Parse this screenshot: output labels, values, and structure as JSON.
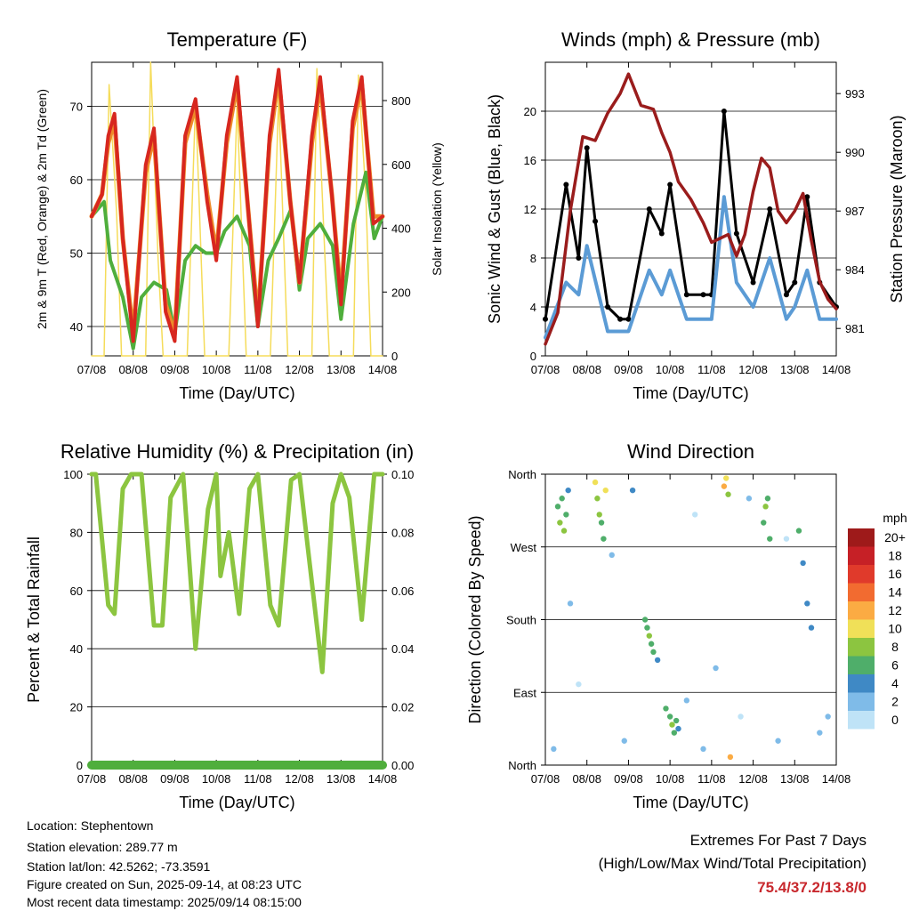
{
  "footer": {
    "location": "Location: Stephentown",
    "elevation": "Station elevation: 289.77 m",
    "latlon": "Station lat/lon: 42.5262; -73.3591",
    "created": "Figure created on Sun, 2025-09-14, at 08:23 UTC",
    "recent": "Most recent data timestamp: 2025/09/14 08:15:00"
  },
  "extremes": {
    "title": "Extremes For Past 7 Days",
    "subtitle": "(High/Low/Max Wind/Total Precipitation)",
    "values": "75.4/37.2/13.8/0",
    "color": "#c8282d"
  },
  "chart_data": [
    {
      "type": "line",
      "title": "Temperature (F)",
      "xlabel": "Time (Day/UTC)",
      "ylabel": "2m & 9m T (Red, Orange) & 2m Td (Green)",
      "y2label": "Solar Insolation (Yellow)",
      "x_ticks": [
        "07/08",
        "08/08",
        "09/08",
        "10/08",
        "11/08",
        "12/08",
        "13/08",
        "14/08"
      ],
      "xlim": [
        0,
        7
      ],
      "ylim": [
        36,
        76
      ],
      "y_ticks": [
        "40",
        "50",
        "60",
        "70"
      ],
      "y2lim": [
        0,
        920
      ],
      "y2_ticks": [
        "0",
        "200",
        "400",
        "600",
        "800"
      ],
      "grid": "horizontal",
      "colors": {
        "t2m": "#d7271f",
        "t9m": "#ee8a2a",
        "td": "#4fae3c",
        "solar": "#f5dc5a"
      },
      "series": [
        {
          "key": "t2m",
          "x": [
            0,
            0.25,
            0.4,
            0.55,
            0.75,
            1.0,
            1.3,
            1.5,
            1.78,
            2.0,
            2.25,
            2.5,
            2.78,
            3.0,
            3.25,
            3.5,
            3.78,
            4.0,
            4.28,
            4.5,
            4.78,
            5.0,
            5.3,
            5.5,
            5.78,
            6.0,
            6.28,
            6.5,
            6.78,
            7.0
          ],
          "y": [
            55,
            58,
            66,
            69,
            52,
            38,
            62,
            67,
            42,
            38,
            66,
            71,
            57,
            49,
            66,
            74,
            55,
            40,
            66,
            75,
            57,
            46,
            66,
            74,
            58,
            43,
            68,
            74,
            54,
            55
          ]
        },
        {
          "key": "t9m",
          "x": [
            0,
            0.25,
            0.4,
            0.55,
            0.75,
            1.0,
            1.3,
            1.5,
            1.78,
            2.0,
            2.25,
            2.5,
            2.78,
            3.0,
            3.25,
            3.5,
            3.78,
            4.0,
            4.28,
            4.5,
            4.78,
            5.0,
            5.3,
            5.5,
            5.78,
            6.0,
            6.28,
            6.5,
            6.78,
            7.0
          ],
          "y": [
            55,
            58,
            65,
            68,
            52,
            39,
            61,
            66,
            43,
            39,
            65,
            70,
            58,
            50,
            65,
            73,
            55,
            41,
            65,
            74,
            57,
            46,
            65,
            73,
            58,
            44,
            67,
            73,
            55,
            55
          ]
        },
        {
          "key": "td",
          "x": [
            0,
            0.3,
            0.45,
            0.75,
            1.0,
            1.2,
            1.5,
            1.8,
            2.0,
            2.25,
            2.5,
            2.75,
            3.0,
            3.2,
            3.5,
            3.8,
            4.0,
            4.25,
            4.5,
            4.8,
            5.0,
            5.2,
            5.5,
            5.8,
            6.0,
            6.3,
            6.6,
            6.8,
            7.0
          ],
          "y": [
            55,
            57,
            49,
            44,
            37,
            44,
            46,
            45,
            39,
            49,
            51,
            50,
            50,
            53,
            55,
            51,
            40,
            49,
            52,
            56,
            45,
            52,
            54,
            51,
            41,
            54,
            61,
            52,
            55
          ]
        },
        {
          "key": "solar",
          "x": [
            0,
            0.3,
            0.42,
            0.6,
            0.72,
            1.0,
            1.3,
            1.42,
            1.6,
            1.72,
            2.0,
            2.3,
            2.5,
            2.72,
            3.0,
            3.3,
            3.5,
            3.72,
            4.0,
            4.3,
            4.5,
            4.72,
            5.0,
            5.3,
            5.42,
            5.6,
            5.72,
            6.0,
            6.3,
            6.42,
            6.6,
            6.72,
            7.0
          ],
          "y": [
            0,
            0,
            850,
            450,
            0,
            0,
            0,
            920,
            300,
            0,
            0,
            0,
            800,
            0,
            0,
            0,
            790,
            0,
            0,
            0,
            810,
            0,
            0,
            0,
            900,
            350,
            0,
            0,
            0,
            880,
            500,
            0,
            0
          ]
        }
      ]
    },
    {
      "type": "line",
      "title": "Winds (mph) & Pressure (mb)",
      "xlabel": "Time (Day/UTC)",
      "ylabel": "Sonic Wind & Gust (Blue, Black)",
      "y2label": "Station Pressure (Maroon)",
      "x_ticks": [
        "07/08",
        "08/08",
        "09/08",
        "10/08",
        "11/08",
        "12/08",
        "13/08",
        "14/08"
      ],
      "xlim": [
        0,
        7
      ],
      "ylim": [
        0,
        24
      ],
      "y_ticks": [
        "0",
        "4",
        "8",
        "12",
        "16",
        "20"
      ],
      "y2lim": [
        979.6,
        994.6
      ],
      "y2_ticks": [
        "981",
        "984",
        "987",
        "990",
        "993"
      ],
      "grid": "horizontal",
      "colors": {
        "wind": "#5b9bd5",
        "gust": "#000000",
        "pressure": "#9a1c1c"
      },
      "series": [
        {
          "key": "wind",
          "x": [
            0,
            0.5,
            0.8,
            1.0,
            1.5,
            1.8,
            2.0,
            2.5,
            2.8,
            3.0,
            3.4,
            3.8,
            4.0,
            4.3,
            4.6,
            5.0,
            5.4,
            5.8,
            6.0,
            6.3,
            6.6,
            7.0
          ],
          "y": [
            1.5,
            6,
            5,
            9,
            2,
            2,
            2,
            7,
            5,
            7,
            3,
            3,
            3,
            13,
            6,
            4,
            8,
            3,
            4,
            7,
            3,
            3
          ]
        },
        {
          "key": "gust",
          "x": [
            0,
            0.5,
            0.8,
            1.0,
            1.2,
            1.5,
            1.8,
            2.0,
            2.5,
            2.8,
            3.0,
            3.4,
            3.8,
            4.0,
            4.3,
            4.6,
            5.0,
            5.4,
            5.8,
            6.0,
            6.3,
            6.6,
            7.0
          ],
          "y": [
            3,
            14,
            8,
            17,
            11,
            4,
            3,
            3,
            12,
            10,
            14,
            5,
            5,
            5,
            20,
            10,
            6,
            12,
            5,
            6,
            13,
            6,
            4
          ]
        },
        {
          "key": "pressure",
          "x": [
            0,
            0.3,
            0.6,
            0.9,
            1.2,
            1.5,
            1.8,
            2.0,
            2.3,
            2.6,
            2.8,
            3.0,
            3.2,
            3.5,
            3.8,
            4.0,
            4.2,
            4.4,
            4.6,
            4.8,
            5.0,
            5.2,
            5.4,
            5.6,
            5.8,
            6.0,
            6.2,
            6.4,
            6.6,
            6.8,
            7.0
          ],
          "y": [
            980.2,
            981.8,
            987,
            990.8,
            990.6,
            992,
            993,
            994,
            992.4,
            992.2,
            991,
            990,
            988.5,
            987.6,
            986.4,
            985.4,
            985.6,
            985.8,
            984.7,
            985.8,
            988,
            989.7,
            989.2,
            987,
            986.4,
            987,
            987.9,
            985.5,
            983.4,
            982.5,
            982
          ]
        }
      ]
    },
    {
      "type": "line",
      "title": "Relative Humidity (%) & Precipitation (in)",
      "xlabel": "Time (Day/UTC)",
      "ylabel": "Percent & Total Rainfall",
      "x_ticks": [
        "07/08",
        "08/08",
        "09/08",
        "10/08",
        "11/08",
        "12/08",
        "13/08",
        "14/08"
      ],
      "xlim": [
        0,
        7
      ],
      "ylim": [
        0,
        100
      ],
      "y_ticks": [
        "0",
        "20",
        "40",
        "60",
        "80",
        "100"
      ],
      "y2lim": [
        0,
        0.1
      ],
      "y2_ticks": [
        "0.00",
        "0.02",
        "0.04",
        "0.06",
        "0.08",
        "0.10"
      ],
      "grid": "horizontal",
      "colors": {
        "rh": "#8cc540",
        "precip": "#4fae3c"
      },
      "series": [
        {
          "key": "rh",
          "x": [
            0,
            0.1,
            0.22,
            0.4,
            0.55,
            0.75,
            0.95,
            1.2,
            1.5,
            1.7,
            1.9,
            2.2,
            2.5,
            2.8,
            3.0,
            3.1,
            3.3,
            3.55,
            3.8,
            4.0,
            4.3,
            4.5,
            4.8,
            5.0,
            5.2,
            5.55,
            5.8,
            6.0,
            6.2,
            6.5,
            6.8,
            7.0
          ],
          "y": [
            100,
            100,
            82,
            55,
            52,
            95,
            100,
            100,
            48,
            48,
            92,
            100,
            40,
            88,
            100,
            65,
            80,
            52,
            95,
            100,
            55,
            48,
            98,
            100,
            75,
            32,
            90,
            100,
            92,
            50,
            100,
            100
          ]
        },
        {
          "key": "precip",
          "x": [
            0,
            7
          ],
          "y": [
            0,
            0
          ]
        }
      ]
    },
    {
      "type": "scatter",
      "title": "Wind Direction",
      "xlabel": "Time (Day/UTC)",
      "ylabel": "Direction (Colored By Speed)",
      "x_ticks": [
        "07/08",
        "08/08",
        "09/08",
        "10/08",
        "11/08",
        "12/08",
        "13/08",
        "14/08"
      ],
      "xlim": [
        0,
        7
      ],
      "ylim": [
        0,
        360
      ],
      "y_ticks": [
        "North",
        "East",
        "South",
        "West",
        "North"
      ],
      "grid": "horizontal",
      "legend": {
        "title": "mph",
        "labels": [
          "20+",
          "18",
          "16",
          "14",
          "12",
          "10",
          "8",
          "6",
          "4",
          "2",
          "0"
        ],
        "colors": [
          "#9e1a1a",
          "#c62026",
          "#e03a2b",
          "#f26b30",
          "#fbab43",
          "#f0e058",
          "#8cc540",
          "#4fae6a",
          "#3f89c5",
          "#7fbbe8",
          "#bfe3f7"
        ]
      },
      "series": [
        {
          "name": "",
          "x": [
            0.3,
            0.35,
            0.4,
            0.45,
            0.5,
            0.55,
            1.2,
            1.25,
            1.3,
            1.35,
            1.4,
            1.45,
            2.4,
            2.45,
            2.5,
            2.55,
            2.6,
            2.7,
            2.9,
            3.0,
            3.05,
            3.1,
            3.15,
            3.2,
            4.3,
            4.35,
            4.4,
            4.45,
            5.25,
            5.3,
            5.35,
            5.4,
            6.1,
            6.2,
            6.3,
            6.4,
            0.2,
            0.6,
            0.8,
            1.6,
            1.9,
            2.1,
            3.4,
            3.6,
            3.8,
            4.1,
            4.7,
            4.9,
            5.6,
            5.8,
            6.6,
            6.8
          ],
          "y": [
            320,
            300,
            330,
            290,
            310,
            340,
            350,
            330,
            310,
            300,
            280,
            340,
            180,
            170,
            160,
            150,
            140,
            130,
            70,
            60,
            50,
            40,
            55,
            45,
            345,
            355,
            335,
            10,
            300,
            320,
            330,
            280,
            290,
            250,
            200,
            170,
            20,
            200,
            100,
            260,
            30,
            340,
            80,
            310,
            20,
            120,
            60,
            330,
            30,
            280,
            40,
            60
          ],
          "speed": [
            7,
            8,
            6,
            9,
            7,
            5,
            10,
            9,
            8,
            7,
            6,
            11,
            6,
            7,
            8,
            7,
            6,
            5,
            6,
            7,
            8,
            7,
            6,
            5,
            12,
            11,
            9,
            13,
            7,
            8,
            6,
            7,
            6,
            5,
            4,
            5,
            2,
            3,
            1,
            2,
            3,
            4,
            2,
            1,
            3,
            2,
            1,
            2,
            3,
            1,
            2,
            3
          ]
        }
      ]
    }
  ]
}
